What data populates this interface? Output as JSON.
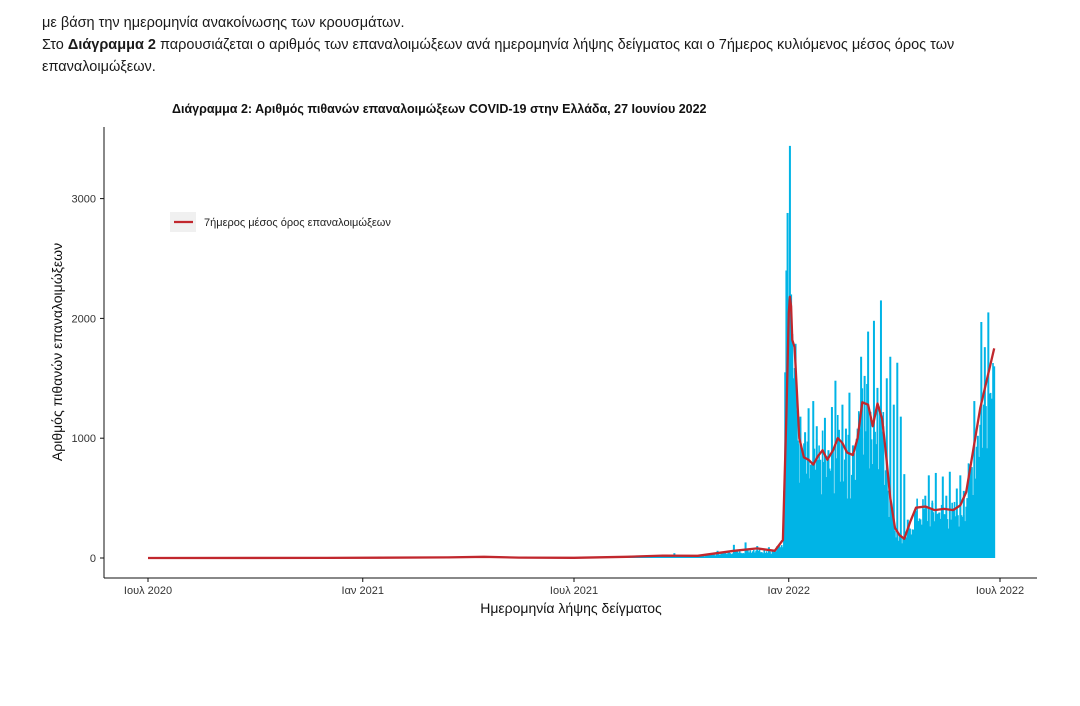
{
  "text": {
    "line1": "με βάση την ημερομηνία ανακοίνωσης των κρουσμάτων.",
    "line2_pre": "Στο ",
    "line2_bold": "Διάγραμμα 2",
    "line2_post": " παρουσιάζεται ο αριθμός των επαναλοιμώξεων ανά ημερομηνία λήψης δείγματος και ο 7ήμερος κυλιόμενος μέσος όρος των επαναλοιμώξεων."
  },
  "colors": {
    "bars": "#00b4e6",
    "line": "#c1272d"
  },
  "chart_data": {
    "type": "bar",
    "title": "Διάγραμμα 2: Αριθμός πιθανών επαναλοιμώξεων COVID-19 στην Ελλάδα, 27 Ιουνίου 2022",
    "xlabel": "Ημερομηνία λήψης δείγματος",
    "ylabel": "Αριθμός πιθανών επαναλοιμώξεων",
    "x_ticks": [
      {
        "date": "2020-07-01",
        "label": "Ιουλ 2020"
      },
      {
        "date": "2021-01-01",
        "label": "Ιαν 2021"
      },
      {
        "date": "2021-07-01",
        "label": "Ιουλ 2021"
      },
      {
        "date": "2022-01-01",
        "label": "Ιαν 2022"
      },
      {
        "date": "2022-07-01",
        "label": "Ιουλ 2022"
      }
    ],
    "y_ticks": [
      0,
      1000,
      2000,
      3000
    ],
    "xlim": [
      "2020-06-20",
      "2022-07-20"
    ],
    "ylim": [
      -100,
      3600
    ],
    "grid": false,
    "legend": {
      "position": "top-left",
      "entries": [
        "7ήμερος μέσος όρος επαναλοιμώξεων"
      ]
    },
    "series": [
      {
        "type": "bar",
        "points": [
          [
            "2021-09-01",
            15
          ],
          [
            "2021-09-25",
            40
          ],
          [
            "2021-10-15",
            20
          ],
          [
            "2021-11-01",
            60
          ],
          [
            "2021-11-15",
            110
          ],
          [
            "2021-11-25",
            130
          ],
          [
            "2021-12-05",
            100
          ],
          [
            "2021-12-15",
            90
          ],
          [
            "2021-12-25",
            60
          ],
          [
            "2021-12-28",
            250
          ],
          [
            "2021-12-29",
            1550
          ],
          [
            "2021-12-30",
            2400
          ],
          [
            "2021-12-31",
            2880
          ],
          [
            "2022-01-01",
            2050
          ],
          [
            "2022-01-02",
            3440
          ],
          [
            "2022-01-03",
            2200
          ],
          [
            "2022-01-04",
            1870
          ],
          [
            "2022-01-05",
            1500
          ],
          [
            "2022-01-07",
            1300
          ],
          [
            "2022-01-09",
            950
          ],
          [
            "2022-01-11",
            1180
          ],
          [
            "2022-01-13",
            880
          ],
          [
            "2022-01-15",
            1050
          ],
          [
            "2022-01-18",
            1250
          ],
          [
            "2022-01-20",
            780
          ],
          [
            "2022-01-22",
            1310
          ],
          [
            "2022-01-25",
            1100
          ],
          [
            "2022-01-28",
            820
          ],
          [
            "2022-02-01",
            1170
          ],
          [
            "2022-02-04",
            900
          ],
          [
            "2022-02-07",
            1260
          ],
          [
            "2022-02-10",
            1480
          ],
          [
            "2022-02-13",
            1070
          ],
          [
            "2022-02-16",
            1280
          ],
          [
            "2022-02-19",
            1080
          ],
          [
            "2022-02-22",
            1380
          ],
          [
            "2022-02-25",
            940
          ],
          [
            "2022-03-01",
            1080
          ],
          [
            "2022-03-04",
            1680
          ],
          [
            "2022-03-07",
            1520
          ],
          [
            "2022-03-10",
            1890
          ],
          [
            "2022-03-12",
            1220
          ],
          [
            "2022-03-15",
            1980
          ],
          [
            "2022-03-18",
            1420
          ],
          [
            "2022-03-21",
            2150
          ],
          [
            "2022-03-23",
            1100
          ],
          [
            "2022-03-26",
            1500
          ],
          [
            "2022-03-29",
            1680
          ],
          [
            "2022-04-01",
            1280
          ],
          [
            "2022-04-04",
            1630
          ],
          [
            "2022-04-07",
            1180
          ],
          [
            "2022-04-10",
            700
          ],
          [
            "2022-04-13",
            320
          ],
          [
            "2022-04-16",
            180
          ],
          [
            "2022-04-19",
            230
          ],
          [
            "2022-04-22",
            100
          ],
          [
            "2022-04-25",
            200
          ],
          [
            "2022-04-28",
            520
          ],
          [
            "2022-05-01",
            690
          ],
          [
            "2022-05-04",
            460
          ],
          [
            "2022-05-07",
            710
          ],
          [
            "2022-05-10",
            380
          ],
          [
            "2022-05-13",
            680
          ],
          [
            "2022-05-16",
            520
          ],
          [
            "2022-05-19",
            720
          ],
          [
            "2022-05-22",
            400
          ],
          [
            "2022-05-25",
            580
          ],
          [
            "2022-05-28",
            690
          ],
          [
            "2022-05-31",
            560
          ],
          [
            "2022-06-03",
            500
          ],
          [
            "2022-06-06",
            600
          ],
          [
            "2022-06-09",
            1310
          ],
          [
            "2022-06-12",
            1020
          ],
          [
            "2022-06-15",
            1970
          ],
          [
            "2022-06-18",
            1760
          ],
          [
            "2022-06-21",
            2050
          ],
          [
            "2022-06-24",
            1330
          ],
          [
            "2022-06-26",
            1600
          ]
        ]
      },
      {
        "type": "line",
        "name": "7ήμερος μέσος όρος επαναλοιμώξεων",
        "points": [
          [
            "2020-07-01",
            0
          ],
          [
            "2020-12-01",
            1
          ],
          [
            "2021-03-15",
            5
          ],
          [
            "2021-04-15",
            10
          ],
          [
            "2021-05-15",
            3
          ],
          [
            "2021-07-01",
            2
          ],
          [
            "2021-08-15",
            10
          ],
          [
            "2021-09-15",
            20
          ],
          [
            "2021-10-15",
            18
          ],
          [
            "2021-11-15",
            60
          ],
          [
            "2021-12-05",
            80
          ],
          [
            "2021-12-20",
            60
          ],
          [
            "2021-12-27",
            150
          ],
          [
            "2021-12-30",
            1200
          ],
          [
            "2022-01-01",
            2050
          ],
          [
            "2022-01-02",
            2180
          ],
          [
            "2022-01-03",
            2100
          ],
          [
            "2022-01-04",
            1820
          ],
          [
            "2022-01-06",
            1760
          ],
          [
            "2022-01-10",
            1000
          ],
          [
            "2022-01-14",
            840
          ],
          [
            "2022-01-18",
            820
          ],
          [
            "2022-01-22",
            780
          ],
          [
            "2022-01-26",
            850
          ],
          [
            "2022-01-30",
            900
          ],
          [
            "2022-02-03",
            820
          ],
          [
            "2022-02-08",
            900
          ],
          [
            "2022-02-12",
            1000
          ],
          [
            "2022-02-16",
            960
          ],
          [
            "2022-02-20",
            880
          ],
          [
            "2022-02-25",
            860
          ],
          [
            "2022-03-01",
            1000
          ],
          [
            "2022-03-05",
            1300
          ],
          [
            "2022-03-10",
            1280
          ],
          [
            "2022-03-14",
            1100
          ],
          [
            "2022-03-18",
            1290
          ],
          [
            "2022-03-22",
            1160
          ],
          [
            "2022-03-25",
            900
          ],
          [
            "2022-03-29",
            500
          ],
          [
            "2022-04-02",
            250
          ],
          [
            "2022-04-06",
            190
          ],
          [
            "2022-04-10",
            160
          ],
          [
            "2022-04-15",
            300
          ],
          [
            "2022-04-20",
            420
          ],
          [
            "2022-04-28",
            430
          ],
          [
            "2022-05-06",
            400
          ],
          [
            "2022-05-14",
            410
          ],
          [
            "2022-05-22",
            400
          ],
          [
            "2022-05-28",
            440
          ],
          [
            "2022-06-02",
            550
          ],
          [
            "2022-06-08",
            900
          ],
          [
            "2022-06-14",
            1250
          ],
          [
            "2022-06-20",
            1500
          ],
          [
            "2022-06-26",
            1750
          ]
        ]
      }
    ]
  }
}
